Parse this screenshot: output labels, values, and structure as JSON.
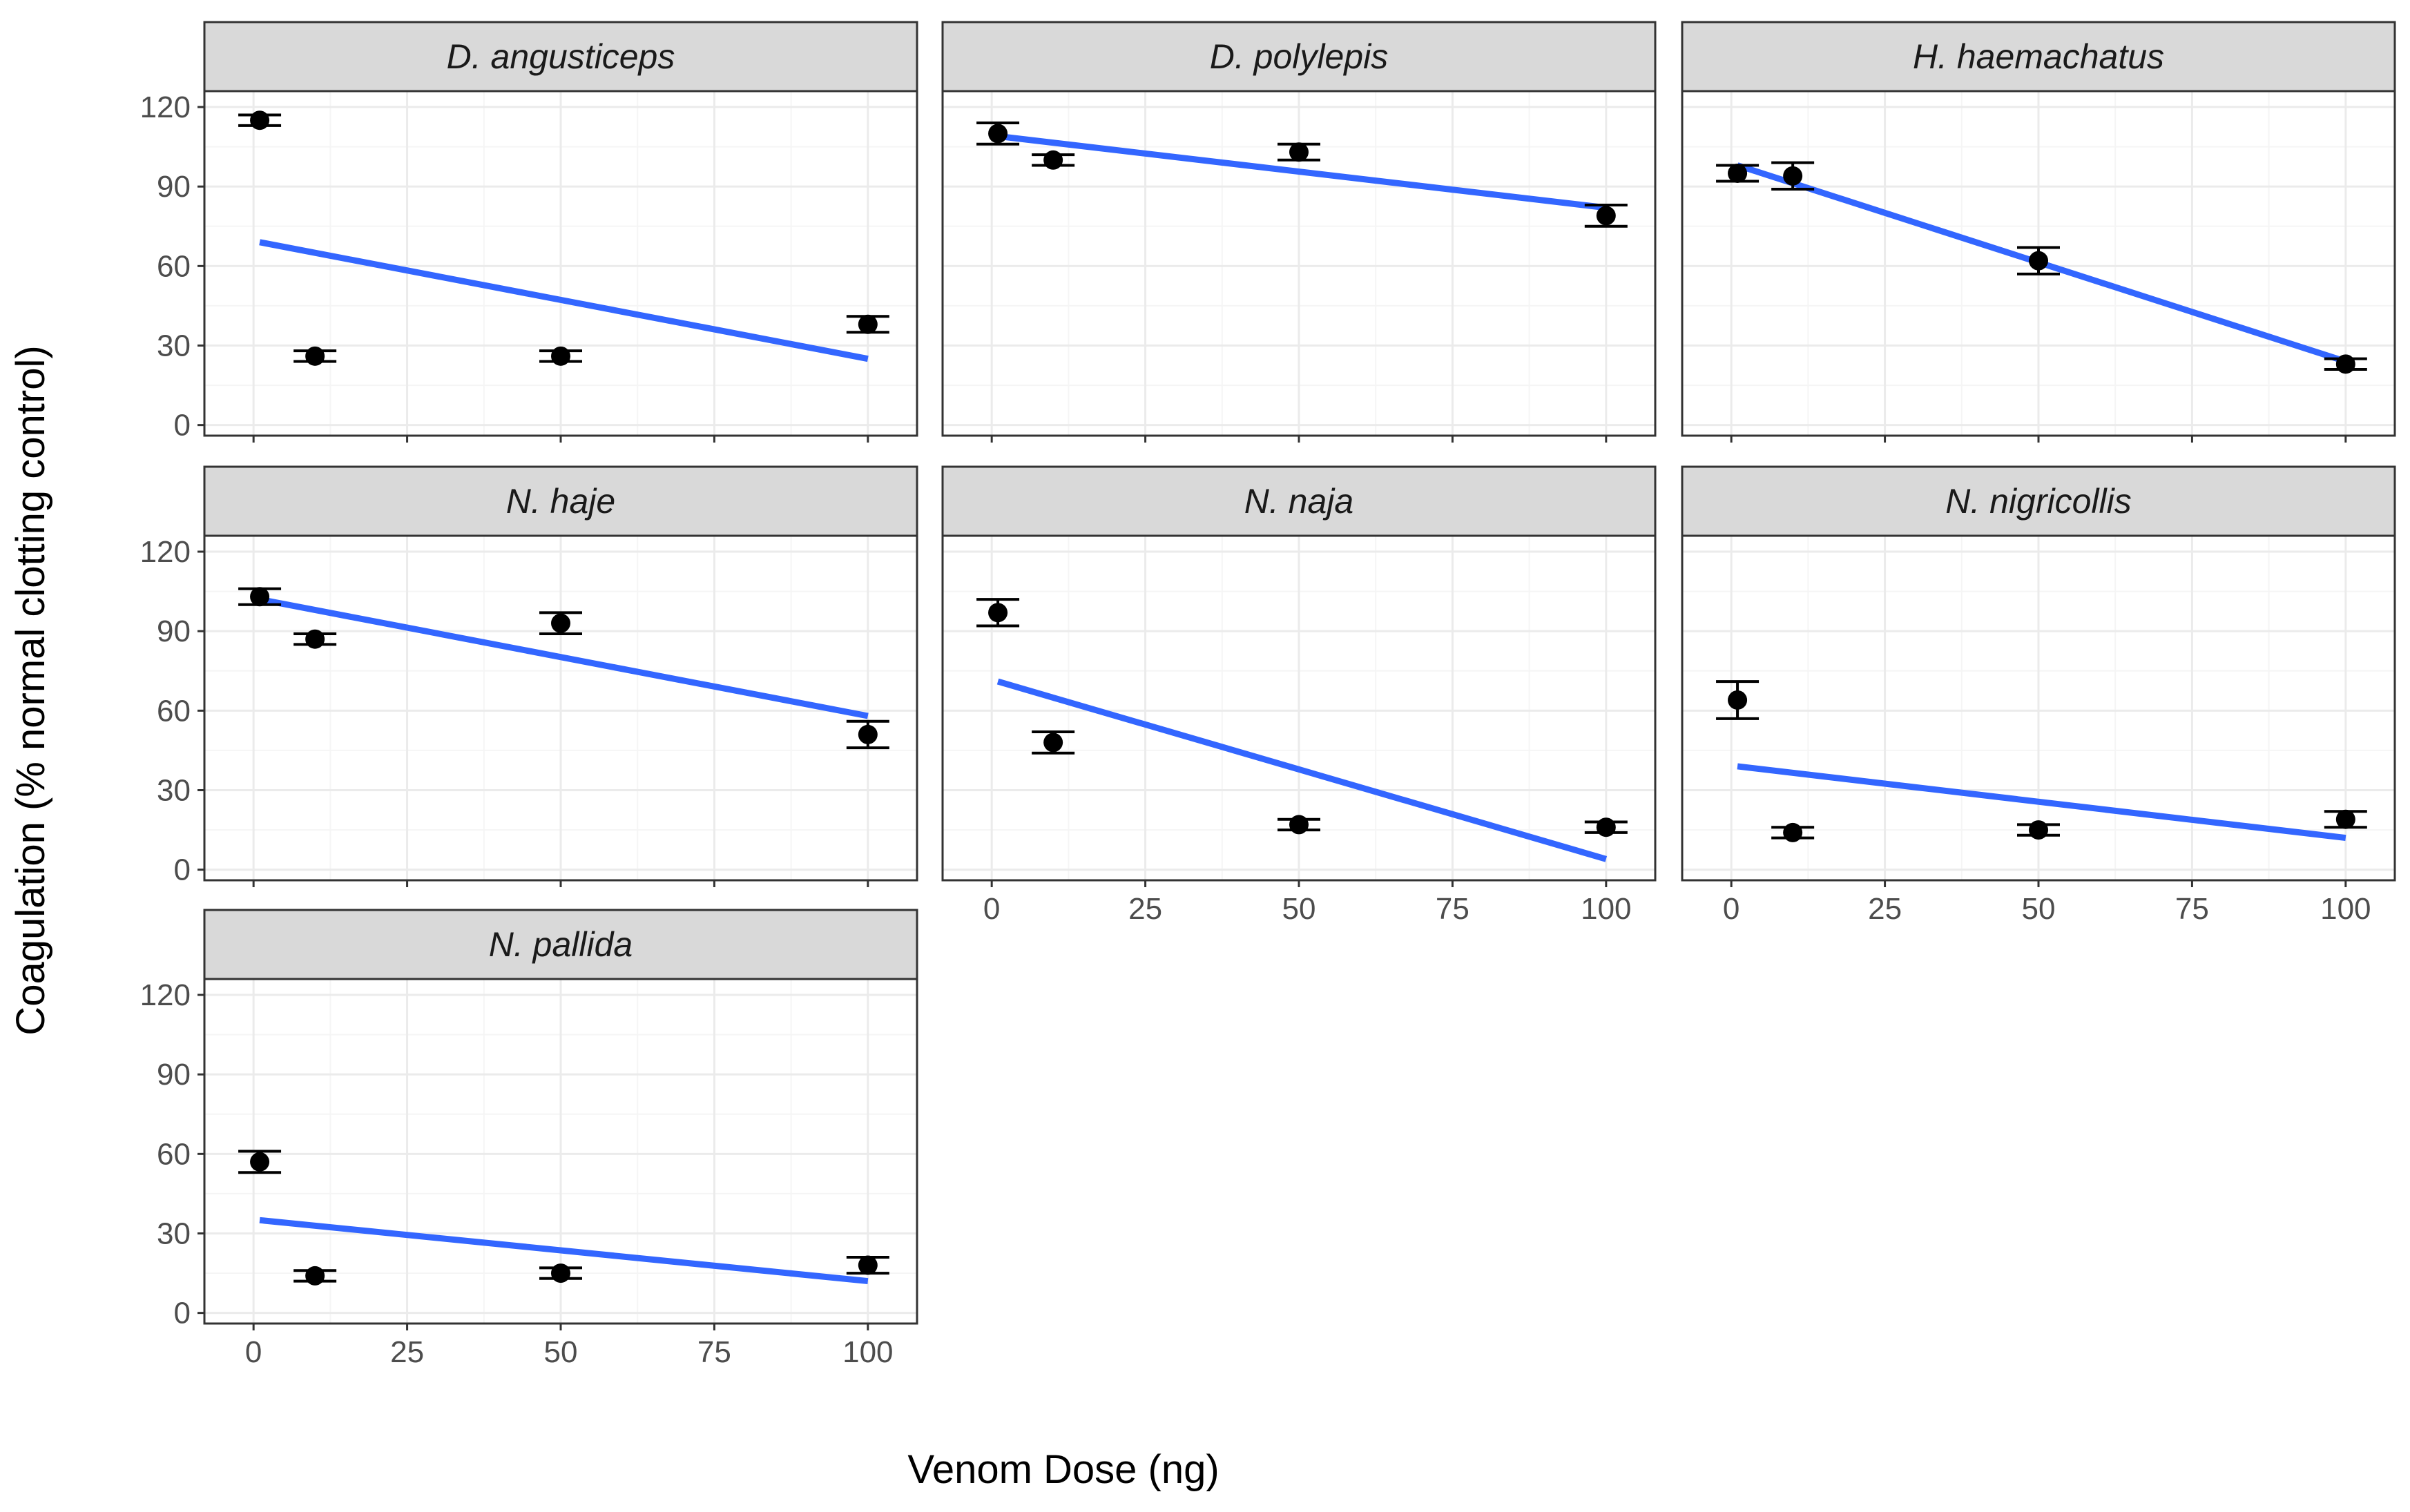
{
  "chart_data": {
    "type": "scatter",
    "description_kind": "faceted scatter with error bars and linear fit lines",
    "xlabel": "Venom Dose (ng)",
    "ylabel": "Coagulation (% normal clotting control)",
    "xlim": [
      -8,
      108
    ],
    "ylim": [
      -4,
      126
    ],
    "x_ticks": [
      0,
      25,
      50,
      75,
      100
    ],
    "y_ticks": [
      0,
      30,
      60,
      90,
      120
    ],
    "grid": true,
    "colors": {
      "fit_line": "#3366FF",
      "points": "#000000",
      "strip_fill": "#D9D9D9",
      "grid_major": "#EBEBEB",
      "grid_minor": "#F5F5F5",
      "panel_border": "#333333"
    },
    "panels": [
      {
        "name": "D. angusticeps",
        "x": [
          1,
          10,
          50,
          100
        ],
        "y": [
          115,
          26,
          26,
          38
        ],
        "err": [
          2,
          2,
          2,
          3
        ],
        "fit": [
          [
            1,
            69
          ],
          [
            100,
            25
          ]
        ]
      },
      {
        "name": "D. polylepis",
        "x": [
          1,
          10,
          50,
          100
        ],
        "y": [
          110,
          100,
          103,
          79
        ],
        "err": [
          4,
          2,
          3,
          4
        ],
        "fit": [
          [
            1,
            109
          ],
          [
            100,
            82
          ]
        ]
      },
      {
        "name": "H. haemachatus",
        "x": [
          1,
          10,
          50,
          100
        ],
        "y": [
          95,
          94,
          62,
          23
        ],
        "err": [
          3,
          5,
          5,
          2
        ],
        "fit": [
          [
            1,
            98
          ],
          [
            100,
            24
          ]
        ]
      },
      {
        "name": "N. haje",
        "x": [
          1,
          10,
          50,
          100
        ],
        "y": [
          103,
          87,
          93,
          51
        ],
        "err": [
          3,
          2,
          4,
          5
        ],
        "fit": [
          [
            1,
            102
          ],
          [
            100,
            58
          ]
        ]
      },
      {
        "name": "N. naja",
        "x": [
          1,
          10,
          50,
          100
        ],
        "y": [
          97,
          48,
          17,
          16
        ],
        "err": [
          5,
          4,
          2,
          2
        ],
        "fit": [
          [
            1,
            71
          ],
          [
            100,
            4
          ]
        ]
      },
      {
        "name": "N. nigricollis",
        "x": [
          1,
          10,
          50,
          100
        ],
        "y": [
          64,
          14,
          15,
          19
        ],
        "err": [
          7,
          2,
          2,
          3
        ],
        "fit": [
          [
            1,
            39
          ],
          [
            100,
            12
          ]
        ]
      },
      {
        "name": "N. pallida",
        "x": [
          1,
          10,
          50,
          100
        ],
        "y": [
          57,
          14,
          15,
          18
        ],
        "err": [
          4,
          2,
          2,
          3
        ],
        "fit": [
          [
            1,
            35
          ],
          [
            100,
            12
          ]
        ]
      }
    ]
  }
}
